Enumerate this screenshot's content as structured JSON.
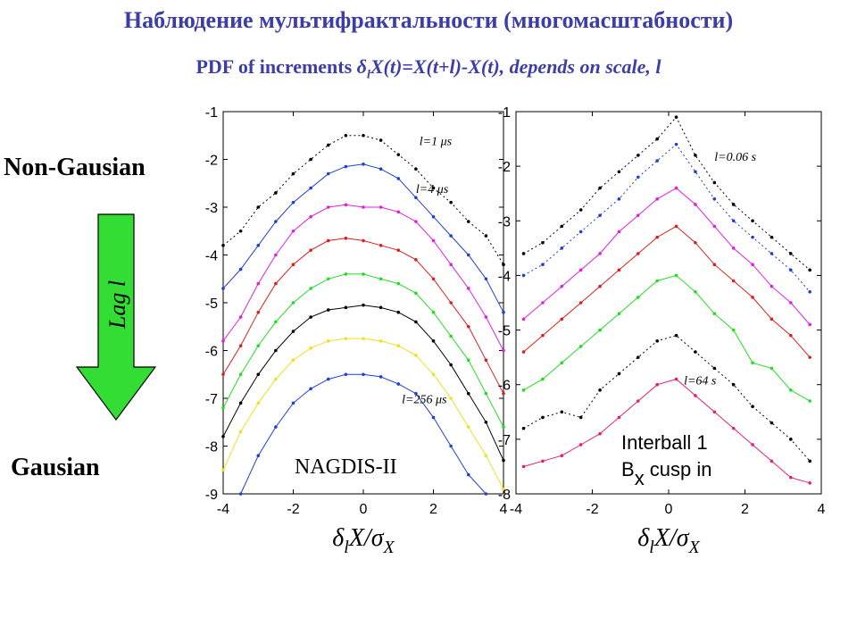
{
  "header": {
    "title_ru": "Наблюдение мультифрактальности (многомасштабности)",
    "title_en_prefix": "PDF of increments ",
    "title_en_delta": "δ",
    "title_en_sub": "l",
    "title_en_rest": "X(t)=X(t+l)-X(t), depends on scale, l"
  },
  "labels": {
    "non_gaussian": "Non-Gausian",
    "gaussian": "Gausian",
    "arrow": "Lag l"
  },
  "colors": {
    "arrow_fill": "#33dd33",
    "title": "#3d3da8"
  },
  "chart_data": [
    {
      "type": "line",
      "title": "",
      "inset_label": "NAGDIS-II",
      "xlabel": "δlX/σX",
      "ylabel": "",
      "xlim": [
        -4,
        4
      ],
      "ylim": [
        -9,
        -1
      ],
      "x_ticks": [
        -4,
        -2,
        0,
        2,
        4
      ],
      "y_ticks": [
        -1,
        -2,
        -3,
        -4,
        -5,
        -6,
        -7,
        -8,
        -9
      ],
      "grid": false,
      "annotations": [
        {
          "text": "l=1 μs",
          "x": 1.6,
          "y": -1.7
        },
        {
          "text": "l=4 μs",
          "x": 1.5,
          "y": -2.7
        },
        {
          "text": "l=256 μs",
          "x": 1.1,
          "y": -7.1
        }
      ],
      "series": [
        {
          "color": "#000000",
          "dash": true,
          "x": [
            -4,
            -3.5,
            -3,
            -2.5,
            -2,
            -1.5,
            -1,
            -0.5,
            0,
            0.5,
            1,
            1.5,
            2,
            2.5,
            3,
            3.5,
            4
          ],
          "y": [
            -3.8,
            -3.5,
            -3.0,
            -2.7,
            -2.3,
            -2.0,
            -1.7,
            -1.5,
            -1.5,
            -1.6,
            -1.9,
            -2.2,
            -2.6,
            -2.9,
            -3.3,
            -3.6,
            -4.2
          ]
        },
        {
          "color": "#1f3fd0",
          "dash": false,
          "x": [
            -4,
            -3.5,
            -3,
            -2.5,
            -2,
            -1.5,
            -1,
            -0.5,
            0,
            0.5,
            1,
            1.5,
            2,
            2.5,
            3,
            3.5,
            4
          ],
          "y": [
            -4.7,
            -4.3,
            -3.8,
            -3.3,
            -2.9,
            -2.6,
            -2.3,
            -2.15,
            -2.1,
            -2.2,
            -2.4,
            -2.8,
            -3.2,
            -3.6,
            -4.0,
            -4.5,
            -5.2
          ]
        },
        {
          "color": "#e020e0",
          "dash": false,
          "x": [
            -4,
            -3.5,
            -3,
            -2.5,
            -2,
            -1.5,
            -1,
            -0.5,
            0,
            0.5,
            1,
            1.5,
            2,
            2.5,
            3,
            3.5,
            4
          ],
          "y": [
            -5.8,
            -5.3,
            -4.6,
            -4.0,
            -3.5,
            -3.2,
            -3.0,
            -2.95,
            -3.0,
            -3.0,
            -3.1,
            -3.3,
            -3.7,
            -4.2,
            -4.7,
            -5.3,
            -6.0
          ]
        },
        {
          "color": "#d82020",
          "dash": false,
          "x": [
            -4,
            -3.5,
            -3,
            -2.5,
            -2,
            -1.5,
            -1,
            -0.5,
            0,
            0.5,
            1,
            1.5,
            2,
            2.5,
            3,
            3.5,
            4
          ],
          "y": [
            -6.5,
            -5.9,
            -5.2,
            -4.6,
            -4.2,
            -3.9,
            -3.7,
            -3.65,
            -3.7,
            -3.8,
            -3.9,
            -4.1,
            -4.5,
            -5.0,
            -5.5,
            -6.2,
            -6.9
          ]
        },
        {
          "color": "#22dd22",
          "dash": false,
          "x": [
            -4,
            -3.5,
            -3,
            -2.5,
            -2,
            -1.5,
            -1,
            -0.5,
            0,
            0.5,
            1,
            1.5,
            2,
            2.5,
            3,
            3.5,
            4
          ],
          "y": [
            -7.2,
            -6.5,
            -5.9,
            -5.4,
            -5.0,
            -4.7,
            -4.5,
            -4.4,
            -4.4,
            -4.5,
            -4.6,
            -4.8,
            -5.2,
            -5.7,
            -6.2,
            -6.9,
            -7.6
          ]
        },
        {
          "color": "#000000",
          "dash": false,
          "x": [
            -4,
            -3.5,
            -3,
            -2.5,
            -2,
            -1.5,
            -1,
            -0.5,
            0,
            0.5,
            1,
            1.5,
            2,
            2.5,
            3,
            3.5,
            4
          ],
          "y": [
            -7.8,
            -7.1,
            -6.5,
            -6.0,
            -5.6,
            -5.3,
            -5.15,
            -5.1,
            -5.05,
            -5.1,
            -5.2,
            -5.4,
            -5.8,
            -6.3,
            -6.9,
            -7.5,
            -8.3
          ]
        },
        {
          "color": "#f0e020",
          "dash": false,
          "x": [
            -4,
            -3.5,
            -3,
            -2.5,
            -2,
            -1.5,
            -1,
            -0.5,
            0,
            0.5,
            1,
            1.5,
            2,
            2.5,
            3,
            3.5,
            4
          ],
          "y": [
            -8.5,
            -7.7,
            -7.1,
            -6.6,
            -6.2,
            -5.95,
            -5.8,
            -5.75,
            -5.75,
            -5.8,
            -5.9,
            -6.1,
            -6.5,
            -7.0,
            -7.6,
            -8.2,
            -8.9
          ]
        },
        {
          "color": "#1f3fd0",
          "dash": false,
          "x": [
            -3.5,
            -3,
            -2.5,
            -2,
            -1.5,
            -1,
            -0.5,
            0,
            0.5,
            1,
            1.5,
            2,
            2.5,
            3,
            3.5
          ],
          "y": [
            -9.0,
            -8.2,
            -7.6,
            -7.1,
            -6.8,
            -6.6,
            -6.5,
            -6.5,
            -6.55,
            -6.7,
            -6.9,
            -7.4,
            -8.0,
            -8.6,
            -9.0
          ]
        }
      ]
    },
    {
      "type": "line",
      "title": "",
      "inset_label_line1": "Interball 1",
      "inset_label_line2_main": "B",
      "inset_label_line2_sub": "x",
      "inset_label_line2_rest": " cusp in",
      "xlabel": "δlX/σX",
      "ylabel": "",
      "xlim": [
        -4,
        4
      ],
      "ylim": [
        -8,
        -1
      ],
      "x_ticks": [
        -4,
        -2,
        0,
        2,
        4
      ],
      "y_ticks": [
        -1,
        -2,
        -3,
        -4,
        -5,
        -6,
        -7,
        -8
      ],
      "grid": false,
      "annotations": [
        {
          "text": "l=0.06 s",
          "x": 1.2,
          "y": -1.9
        },
        {
          "text": "l=64 s",
          "x": 0.4,
          "y": -6.0
        }
      ],
      "series": [
        {
          "color": "#000000",
          "dash": true,
          "x": [
            -3.8,
            -3.3,
            -2.8,
            -2.3,
            -1.8,
            -1.3,
            -0.8,
            -0.3,
            0.2,
            0.7,
            1.2,
            1.7,
            2.2,
            2.7,
            3.2,
            3.7
          ],
          "y": [
            -3.6,
            -3.4,
            -3.1,
            -2.8,
            -2.4,
            -2.1,
            -1.8,
            -1.5,
            -1.1,
            -1.8,
            -2.3,
            -2.7,
            -3.0,
            -3.3,
            -3.6,
            -3.9
          ]
        },
        {
          "color": "#1f3fd0",
          "dash": true,
          "x": [
            -3.8,
            -3.3,
            -2.8,
            -2.3,
            -1.8,
            -1.3,
            -0.8,
            -0.3,
            0.2,
            0.7,
            1.2,
            1.7,
            2.2,
            2.7,
            3.2,
            3.7
          ],
          "y": [
            -4.0,
            -3.8,
            -3.5,
            -3.2,
            -2.9,
            -2.6,
            -2.2,
            -1.9,
            -1.6,
            -2.1,
            -2.6,
            -3.0,
            -3.3,
            -3.6,
            -3.9,
            -4.3
          ]
        },
        {
          "color": "#e020e0",
          "dash": false,
          "x": [
            -3.8,
            -3.3,
            -2.8,
            -2.3,
            -1.8,
            -1.3,
            -0.8,
            -0.3,
            0.2,
            0.7,
            1.2,
            1.7,
            2.2,
            2.7,
            3.2,
            3.7
          ],
          "y": [
            -4.8,
            -4.5,
            -4.2,
            -3.9,
            -3.6,
            -3.2,
            -2.9,
            -2.6,
            -2.4,
            -2.7,
            -3.1,
            -3.5,
            -3.8,
            -4.2,
            -4.5,
            -4.9
          ]
        },
        {
          "color": "#d82020",
          "dash": false,
          "x": [
            -3.8,
            -3.3,
            -2.8,
            -2.3,
            -1.8,
            -1.3,
            -0.8,
            -0.3,
            0.2,
            0.7,
            1.2,
            1.7,
            2.2,
            2.7,
            3.2,
            3.7
          ],
          "y": [
            -5.4,
            -5.1,
            -4.8,
            -4.5,
            -4.2,
            -3.9,
            -3.6,
            -3.3,
            -3.1,
            -3.4,
            -3.8,
            -4.1,
            -4.4,
            -4.8,
            -5.1,
            -5.5
          ]
        },
        {
          "color": "#22dd22",
          "dash": false,
          "x": [
            -3.8,
            -3.3,
            -2.8,
            -2.3,
            -1.8,
            -1.3,
            -0.8,
            -0.3,
            0.2,
            0.7,
            1.2,
            1.7,
            2.2,
            2.7,
            3.2,
            3.7
          ],
          "y": [
            -6.1,
            -5.9,
            -5.6,
            -5.3,
            -5.0,
            -4.7,
            -4.4,
            -4.1,
            -4.0,
            -4.3,
            -4.7,
            -5.0,
            -5.6,
            -5.7,
            -6.1,
            -6.3
          ]
        },
        {
          "color": "#000000",
          "dash": true,
          "x": [
            -3.8,
            -3.3,
            -2.8,
            -2.3,
            -1.8,
            -1.3,
            -0.8,
            -0.3,
            0.2,
            0.7,
            1.2,
            1.7,
            2.2,
            2.7,
            3.2,
            3.7
          ],
          "y": [
            -6.8,
            -6.6,
            -6.5,
            -6.6,
            -6.1,
            -5.8,
            -5.5,
            -5.2,
            -5.1,
            -5.4,
            -5.7,
            -6.0,
            -6.4,
            -6.7,
            -7.0,
            -7.4
          ]
        },
        {
          "color": "#e0207a",
          "dash": false,
          "x": [
            -3.8,
            -3.3,
            -2.8,
            -2.3,
            -1.8,
            -1.3,
            -0.8,
            -0.3,
            0.2,
            0.7,
            1.2,
            1.7,
            2.2,
            2.7,
            3.2,
            3.7
          ],
          "y": [
            -7.5,
            -7.4,
            -7.3,
            -7.1,
            -6.9,
            -6.6,
            -6.3,
            -6.0,
            -5.9,
            -6.2,
            -6.5,
            -6.8,
            -7.1,
            -7.4,
            -7.7,
            -7.8
          ]
        }
      ]
    }
  ]
}
